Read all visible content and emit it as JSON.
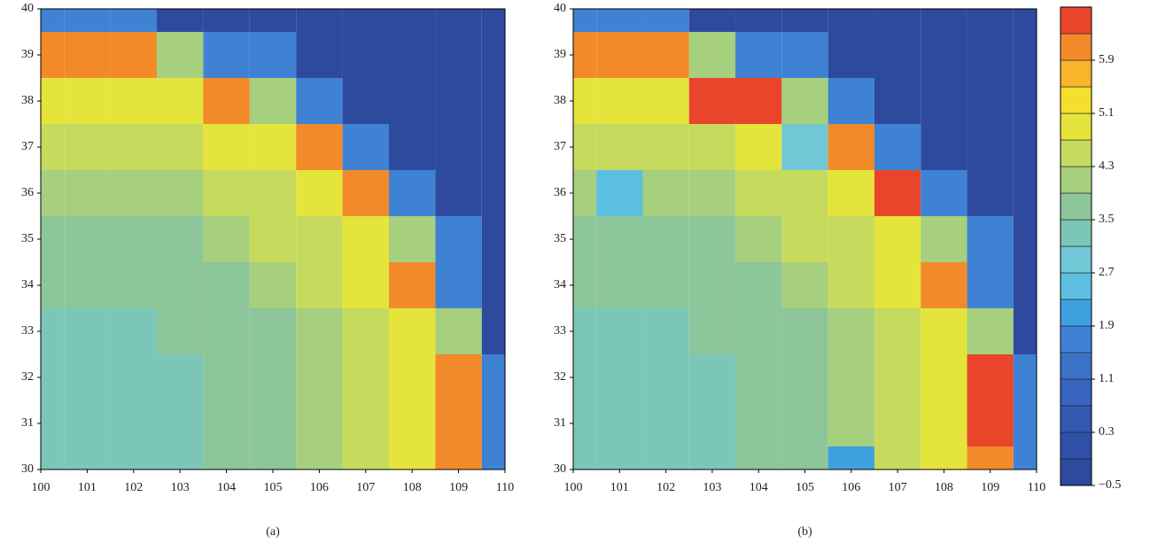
{
  "chart_data": [
    {
      "type": "contour",
      "label": "(a)",
      "xlim": [
        100,
        110
      ],
      "ylim": [
        30,
        40
      ],
      "xticks": [
        100,
        101,
        102,
        103,
        104,
        105,
        106,
        107,
        108,
        109,
        110
      ],
      "yticks": [
        30,
        31,
        32,
        33,
        34,
        35,
        36,
        37,
        38,
        39,
        40
      ],
      "x": [
        100,
        101,
        102,
        103,
        104,
        105,
        106,
        107,
        108,
        109,
        110
      ],
      "y": [
        30,
        31,
        32,
        33,
        34,
        35,
        36,
        37,
        38,
        39,
        40
      ],
      "z": [
        [
          3.2,
          3.2,
          3.3,
          3.3,
          3.6,
          3.6,
          4.0,
          4.4,
          5.0,
          6.0,
          1.5
        ],
        [
          3.2,
          3.2,
          3.3,
          3.3,
          3.6,
          3.6,
          4.0,
          4.4,
          5.0,
          6.0,
          1.5
        ],
        [
          3.3,
          3.3,
          3.3,
          3.3,
          3.6,
          3.6,
          4.0,
          4.4,
          5.0,
          6.0,
          1.5
        ],
        [
          3.3,
          3.3,
          3.3,
          3.6,
          3.6,
          3.6,
          4.0,
          4.4,
          5.0,
          4.0,
          -0.5
        ],
        [
          3.6,
          3.6,
          3.6,
          3.6,
          3.6,
          4.0,
          4.4,
          5.0,
          6.0,
          1.5,
          -0.5
        ],
        [
          3.6,
          3.6,
          3.6,
          3.6,
          4.0,
          4.4,
          4.4,
          5.0,
          4.0,
          1.5,
          -0.5
        ],
        [
          4.0,
          4.0,
          4.0,
          4.0,
          4.4,
          4.4,
          5.0,
          6.0,
          1.5,
          -0.5,
          -0.5
        ],
        [
          4.4,
          4.4,
          4.4,
          4.4,
          5.0,
          5.0,
          6.0,
          1.5,
          -0.5,
          -0.5,
          -0.5
        ],
        [
          5.0,
          5.0,
          5.0,
          5.0,
          6.0,
          4.0,
          1.5,
          -0.5,
          -0.5,
          -0.5,
          -0.5
        ],
        [
          6.0,
          6.0,
          6.0,
          4.0,
          1.5,
          1.5,
          -0.5,
          -0.5,
          -0.5,
          -0.5,
          -0.5
        ],
        [
          1.5,
          1.5,
          1.5,
          -0.5,
          -0.5,
          -0.5,
          -0.5,
          -0.5,
          -0.5,
          -0.5,
          -0.5
        ]
      ]
    },
    {
      "type": "contour",
      "label": "(b)",
      "xlim": [
        100,
        110
      ],
      "ylim": [
        30,
        40
      ],
      "xticks": [
        100,
        101,
        102,
        103,
        104,
        105,
        106,
        107,
        108,
        109,
        110
      ],
      "yticks": [
        30,
        31,
        32,
        33,
        34,
        35,
        36,
        37,
        38,
        39,
        40
      ],
      "x": [
        100,
        101,
        102,
        103,
        104,
        105,
        106,
        107,
        108,
        109,
        110
      ],
      "y": [
        30,
        31,
        32,
        33,
        34,
        35,
        36,
        37,
        38,
        39,
        40
      ],
      "z": [
        [
          3.2,
          3.2,
          3.3,
          3.3,
          3.6,
          3.6,
          1.9,
          4.4,
          5.0,
          6.0,
          1.5
        ],
        [
          3.2,
          3.2,
          3.3,
          3.3,
          3.6,
          3.6,
          4.0,
          4.4,
          5.0,
          6.6,
          1.5
        ],
        [
          3.3,
          3.3,
          3.3,
          3.3,
          3.6,
          3.6,
          4.0,
          4.4,
          5.0,
          6.6,
          1.5
        ],
        [
          3.3,
          3.3,
          3.3,
          3.6,
          3.6,
          3.6,
          4.0,
          4.4,
          5.0,
          4.0,
          -0.5
        ],
        [
          3.6,
          3.6,
          3.6,
          3.6,
          3.6,
          4.0,
          4.4,
          5.0,
          6.0,
          1.5,
          -0.5
        ],
        [
          3.6,
          3.6,
          3.6,
          3.6,
          4.0,
          4.4,
          4.4,
          5.0,
          4.0,
          1.5,
          -0.5
        ],
        [
          4.0,
          2.3,
          4.0,
          4.0,
          4.4,
          4.4,
          5.0,
          6.6,
          1.5,
          -0.5,
          -0.5
        ],
        [
          4.4,
          4.4,
          4.4,
          4.4,
          5.0,
          2.7,
          6.0,
          1.5,
          -0.5,
          -0.5,
          -0.5
        ],
        [
          5.0,
          5.0,
          5.0,
          6.6,
          6.6,
          4.0,
          1.5,
          -0.5,
          -0.5,
          -0.5,
          -0.5
        ],
        [
          6.0,
          6.0,
          6.0,
          4.0,
          1.5,
          1.5,
          -0.5,
          -0.5,
          -0.5,
          -0.5,
          -0.5
        ],
        [
          1.5,
          1.5,
          1.5,
          -0.5,
          -0.5,
          -0.5,
          -0.5,
          -0.5,
          -0.5,
          -0.5,
          -0.5
        ]
      ]
    },
    {
      "type": "colorbar",
      "levels": [
        -0.5,
        -0.1,
        0.3,
        0.7,
        1.1,
        1.5,
        1.9,
        2.3,
        2.7,
        3.1,
        3.5,
        3.9,
        4.3,
        4.7,
        5.1,
        5.5,
        5.9,
        6.3,
        6.7
      ],
      "colors": [
        "#2e4a9e",
        "#3050a8",
        "#3358b2",
        "#3764bd",
        "#3b72c8",
        "#3f82d4",
        "#3fa0e0",
        "#5cbfe0",
        "#72c7d6",
        "#7cc6b8",
        "#8cc69a",
        "#a6cf7e",
        "#c6da5e",
        "#e4e43c",
        "#f6de2c",
        "#f7b52a",
        "#f28a2a",
        "#e8452a"
      ],
      "ylim": [
        -0.5,
        6.7
      ],
      "yticks": [
        {
          "value": -0.5,
          "label": "−0.5"
        },
        0.3,
        1.1,
        1.9,
        2.7,
        3.5,
        4.3,
        5.1,
        5.9
      ]
    }
  ]
}
